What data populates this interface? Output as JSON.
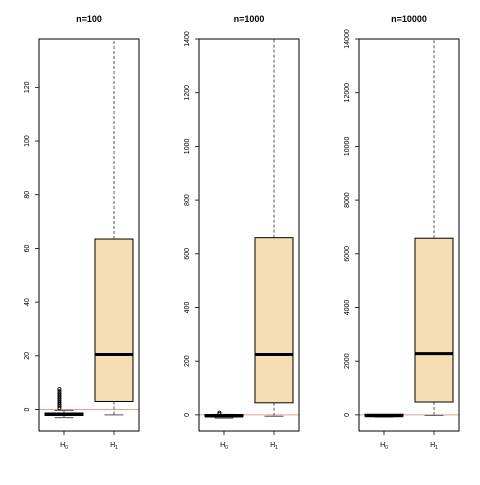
{
  "chart_data": [
    {
      "type": "box",
      "title": "n=100",
      "categories": [
        "H",
        "H"
      ],
      "category_subscripts": [
        "0",
        "1"
      ],
      "ylim": [
        -8,
        138
      ],
      "yticks": [
        0,
        20,
        40,
        60,
        80,
        100,
        120
      ],
      "ytick_labels": [
        "0",
        "20",
        "40",
        "60",
        "80",
        "100",
        "120"
      ],
      "reference_line": 0,
      "boxes": [
        {
          "category": "H0",
          "whisker_low": -3,
          "q1": -2.2,
          "median": -1.8,
          "q3": -1.3,
          "whisker_high": -0.3,
          "outliers": [
            0.5,
            1.2,
            1.9,
            2.6,
            3.3,
            4.0,
            4.7,
            5.4,
            6.1,
            6.8,
            7.6
          ],
          "color": "#000000"
        },
        {
          "category": "H1",
          "whisker_low": -2,
          "q1": 3,
          "median": 20.5,
          "q3": 63.5,
          "whisker_high": 138,
          "outliers": [],
          "color": "#f5deb3"
        }
      ],
      "colors": {
        "box_fill": "#f5deb3",
        "reference_line": "#e8a090"
      }
    },
    {
      "type": "box",
      "title": "n=1000",
      "categories": [
        "H",
        "H"
      ],
      "category_subscripts": [
        "0",
        "1"
      ],
      "ylim": [
        -60,
        1400
      ],
      "yticks": [
        0,
        200,
        400,
        600,
        800,
        1000,
        1200,
        1400
      ],
      "ytick_labels": [
        "0",
        "200",
        "400",
        "600",
        "800",
        "1000",
        "1200",
        "1400"
      ],
      "reference_line": 0,
      "boxes": [
        {
          "category": "H0",
          "whisker_low": -12,
          "q1": -6,
          "median": -4,
          "q3": -1,
          "whisker_high": 2,
          "outliers": [
            4,
            8
          ],
          "color": "#000000"
        },
        {
          "category": "H1",
          "whisker_low": -5,
          "q1": 45,
          "median": 225,
          "q3": 660,
          "whisker_high": 1400,
          "outliers": [],
          "color": "#f5deb3"
        }
      ],
      "colors": {
        "box_fill": "#f5deb3",
        "reference_line": "#e8a090"
      }
    },
    {
      "type": "box",
      "title": "n=10000",
      "categories": [
        "H",
        "H"
      ],
      "category_subscripts": [
        "0",
        "1"
      ],
      "ylim": [
        -600,
        14000
      ],
      "yticks": [
        0,
        2000,
        4000,
        6000,
        8000,
        10000,
        12000,
        14000
      ],
      "ytick_labels": [
        "0",
        "2000",
        "4000",
        "6000",
        "8000",
        "10000",
        "12000",
        "14000"
      ],
      "reference_line": 0,
      "boxes": [
        {
          "category": "H0",
          "whisker_low": -80,
          "q1": -50,
          "median": -30,
          "q3": -10,
          "whisker_high": 15,
          "outliers": [],
          "color": "#000000"
        },
        {
          "category": "H1",
          "whisker_low": -20,
          "q1": 480,
          "median": 2280,
          "q3": 6580,
          "whisker_high": 14000,
          "outliers": [],
          "color": "#f5deb3"
        }
      ],
      "colors": {
        "box_fill": "#f5deb3",
        "reference_line": "#e8a090"
      }
    }
  ]
}
